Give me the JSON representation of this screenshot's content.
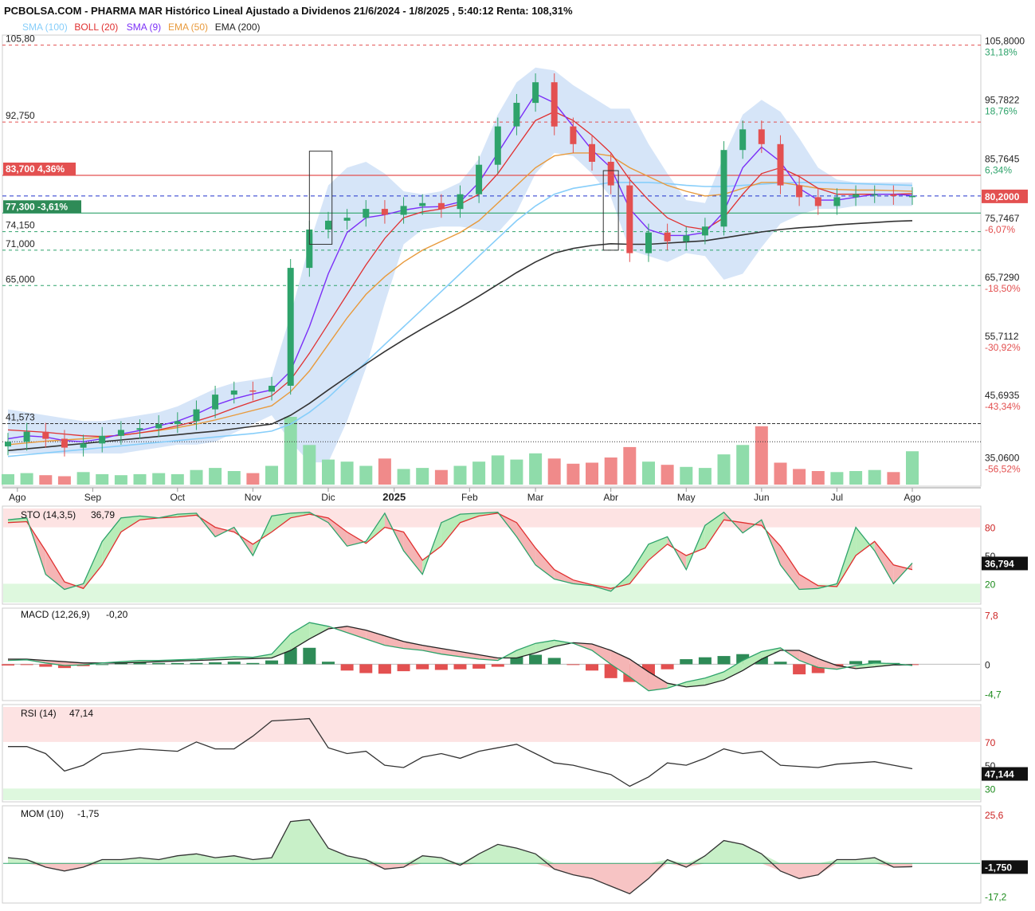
{
  "header": {
    "title": "PCBOLSA.COM - PHARMA MAR Histórico Lineal Ajustado a Dividenos 21/6/2024 - 1/8/2025 , 5:40:12 Renta: 108,31%"
  },
  "legend": [
    {
      "label": "SMA (100)",
      "color": "#87cefa"
    },
    {
      "label": "BOLL (20)",
      "color": "#e03030"
    },
    {
      "label": "SMA (9)",
      "color": "#7b2ff7"
    },
    {
      "label": "EMA (50)",
      "color": "#e89a3c"
    },
    {
      "label": "EMA (200)",
      "color": "#222222"
    }
  ],
  "colors": {
    "up": "#2ea36b",
    "down": "#e35050",
    "boll_fill": "#cfe0f7",
    "vol_up": "#8fdcaa",
    "vol_down": "#f08a8a"
  },
  "chart_data": [
    {
      "type": "line",
      "name": "price",
      "ylim": [
        31.5,
        107.5
      ],
      "y_ticks": [
        {
          "value": 105.8,
          "label": "105,8000",
          "pct": "31,18%"
        },
        {
          "value": 95.7822,
          "label": "95,7822",
          "pct": "18,76%"
        },
        {
          "value": 85.7645,
          "label": "85,7645",
          "pct": "6,34%"
        },
        {
          "value": 75.7467,
          "label": "75,7467",
          "pct": "-6,07%"
        },
        {
          "value": 65.729,
          "label": "65,7290",
          "pct": "-18,50%"
        },
        {
          "value": 55.7112,
          "label": "55,7112",
          "pct": "-30,92%"
        },
        {
          "value": 45.6935,
          "label": "45,6935",
          "pct": "-43,34%"
        },
        {
          "value": 35.06,
          "label": "35,0600",
          "pct": "-56,52%"
        }
      ],
      "levels": [
        {
          "value": 105.8,
          "label": "105,80",
          "style": "red-dash"
        },
        {
          "value": 92.75,
          "label": "92,750",
          "style": "red-dash"
        },
        {
          "value": 83.7,
          "label": "83,700",
          "pct": "4,36%",
          "style": "red-solid"
        },
        {
          "value": 80.2,
          "label": "80,2000",
          "style": "blue-dash"
        },
        {
          "value": 77.3,
          "label": "77,300",
          "pct": "-3,61%",
          "style": "green-solid"
        },
        {
          "value": 74.15,
          "label": "74,150",
          "style": "green-dash"
        },
        {
          "value": 71.0,
          "label": "71,000",
          "style": "green-dash"
        },
        {
          "value": 65.0,
          "label": "65,000",
          "style": "green-dash"
        },
        {
          "value": 41.573,
          "label": "41,573",
          "style": "black-dash"
        },
        {
          "value": 38.5,
          "label": "",
          "style": "black-dot"
        }
      ],
      "last_price": "80,2000",
      "x_labels": [
        "Ago",
        "Sep",
        "Oct",
        "Nov",
        "Dic",
        "2025",
        "Feb",
        "Mar",
        "Abr",
        "May",
        "Jun",
        "Jul",
        "Ago"
      ],
      "x_label_pos": [
        0.5,
        4.5,
        9,
        13,
        17,
        20.5,
        24.5,
        28,
        32,
        36,
        40,
        44,
        48
      ],
      "n_weeks": 49,
      "close": [
        38.5,
        40.2,
        39.0,
        37.5,
        38.2,
        39.5,
        40.5,
        40.8,
        41.5,
        42.0,
        44.0,
        46.5,
        47.2,
        47.0,
        48.0,
        68.0,
        74.5,
        76.0,
        76.5,
        78.0,
        77.0,
        78.5,
        79.0,
        78.0,
        80.5,
        85.5,
        92.0,
        96.0,
        99.5,
        92.0,
        89.0,
        86.0,
        82.0,
        70.5,
        74.0,
        72.5,
        73.5,
        75.0,
        88.0,
        91.5,
        89.0,
        82.0,
        80.0,
        78.5,
        80.0,
        80.5,
        80.5,
        80.2,
        80.2
      ],
      "sma9": [
        39.0,
        39.5,
        39.3,
        38.7,
        38.5,
        39.0,
        39.8,
        40.4,
        41.2,
        42.0,
        43.2,
        44.7,
        45.8,
        46.6,
        47.3,
        50.5,
        58.0,
        67.0,
        74.0,
        76.5,
        77.0,
        77.8,
        78.3,
        78.4,
        79.2,
        82.5,
        87.5,
        92.5,
        97.5,
        96.0,
        92.0,
        88.0,
        85.0,
        78.0,
        74.5,
        73.5,
        73.5,
        74.0,
        77.5,
        85.0,
        88.5,
        86.0,
        81.5,
        79.5,
        79.5,
        80.0,
        80.5,
        80.5,
        80.3
      ],
      "boll_mid": [
        40.5,
        40.3,
        40.1,
        39.8,
        39.5,
        39.4,
        39.6,
        40.0,
        40.5,
        41.2,
        42.0,
        43.0,
        44.2,
        45.3,
        46.3,
        49.0,
        53.5,
        58.5,
        63.5,
        68.5,
        73.0,
        76.5,
        77.5,
        78.0,
        78.8,
        80.5,
        84.0,
        88.5,
        93.0,
        94.5,
        93.0,
        90.5,
        87.5,
        83.0,
        79.5,
        76.5,
        75.0,
        74.5,
        76.5,
        80.5,
        84.0,
        85.0,
        83.5,
        81.5,
        80.5,
        80.5,
        80.5,
        80.5,
        80.6
      ],
      "boll_up": [
        44.0,
        43.5,
        43.0,
        42.5,
        42.0,
        42.0,
        42.5,
        43.0,
        43.5,
        44.5,
        46.0,
        47.5,
        48.5,
        49.0,
        49.5,
        60.0,
        72.0,
        82.0,
        85.0,
        86.0,
        84.0,
        81.0,
        80.5,
        81.0,
        82.5,
        86.5,
        94.0,
        99.5,
        102.0,
        101.5,
        99.0,
        97.0,
        95.0,
        95.0,
        89.0,
        84.0,
        79.5,
        79.0,
        87.0,
        94.0,
        96.5,
        94.5,
        90.0,
        85.0,
        83.0,
        82.5,
        82.5,
        82.5,
        82.5
      ],
      "boll_lo": [
        36.5,
        36.5,
        36.5,
        36.5,
        36.5,
        36.5,
        36.5,
        37.0,
        37.5,
        38.0,
        38.0,
        38.5,
        40.0,
        41.5,
        43.0,
        38.5,
        35.0,
        35.0,
        42.0,
        51.0,
        62.0,
        72.0,
        74.5,
        75.0,
        75.0,
        74.5,
        74.0,
        77.5,
        84.0,
        87.5,
        87.0,
        84.0,
        80.0,
        71.0,
        70.0,
        69.0,
        70.5,
        70.0,
        66.0,
        67.0,
        71.5,
        75.5,
        77.0,
        78.0,
        78.0,
        78.5,
        78.5,
        78.5,
        78.5
      ],
      "ema50": [
        38.0,
        38.3,
        38.6,
        38.8,
        39.0,
        39.3,
        39.6,
        40.0,
        40.4,
        40.9,
        41.5,
        42.2,
        43.0,
        43.8,
        44.6,
        47.0,
        50.5,
        55.0,
        59.5,
        63.5,
        66.5,
        69.0,
        71.0,
        72.5,
        74.0,
        76.0,
        79.0,
        82.0,
        85.0,
        87.0,
        87.5,
        87.5,
        87.0,
        85.0,
        83.5,
        82.0,
        81.0,
        80.2,
        80.5,
        81.5,
        82.5,
        82.5,
        82.0,
        81.5,
        81.3,
        81.2,
        81.2,
        81.1,
        81.0
      ],
      "sma100": [
        36.0,
        36.3,
        36.6,
        36.9,
        37.2,
        37.5,
        37.8,
        38.1,
        38.4,
        38.7,
        39.0,
        39.3,
        39.6,
        39.9,
        40.3,
        41.5,
        43.5,
        46.0,
        49.0,
        52.0,
        55.0,
        58.0,
        61.0,
        64.0,
        67.0,
        70.0,
        73.0,
        76.0,
        78.5,
        80.5,
        81.5,
        82.0,
        82.5,
        82.5,
        82.5,
        82.3,
        82.0,
        81.8,
        81.8,
        82.0,
        82.2,
        82.4,
        82.5,
        82.5,
        82.4,
        82.3,
        82.2,
        82.1,
        82.0
      ],
      "ema200": [
        37.0,
        37.3,
        37.6,
        37.9,
        38.2,
        38.5,
        38.8,
        39.1,
        39.4,
        39.7,
        40.0,
        40.3,
        40.7,
        41.1,
        41.5,
        43.0,
        45.0,
        47.3,
        49.5,
        51.7,
        53.8,
        55.8,
        57.7,
        59.5,
        61.3,
        63.2,
        65.2,
        67.2,
        69.0,
        70.5,
        71.3,
        71.8,
        72.1,
        72.0,
        72.0,
        72.2,
        72.4,
        72.6,
        73.1,
        73.6,
        74.1,
        74.5,
        74.8,
        75.0,
        75.3,
        75.5,
        75.7,
        75.9,
        76.0
      ],
      "volume": [
        1.0,
        1.1,
        0.9,
        0.8,
        1.2,
        1.0,
        0.9,
        1.0,
        1.1,
        1.0,
        1.4,
        1.6,
        1.3,
        1.1,
        1.8,
        6.5,
        3.8,
        2.4,
        2.2,
        1.8,
        2.5,
        1.5,
        1.6,
        1.4,
        1.8,
        2.2,
        2.8,
        2.4,
        3.0,
        2.5,
        2.0,
        2.1,
        2.6,
        3.6,
        2.2,
        1.9,
        1.7,
        1.6,
        2.9,
        3.8,
        5.6,
        2.1,
        1.5,
        1.3,
        1.2,
        1.3,
        1.4,
        1.2,
        3.2
      ],
      "annotation_boxes": [
        [
          16,
          17.2,
          72.0,
          87.8
        ],
        [
          31.6,
          32.4,
          71.0,
          84.5
        ]
      ]
    },
    {
      "type": "line",
      "name": "STO (14,3,5)",
      "title": "STO (14,3,5)",
      "value": "36,79",
      "last_label": "36,794",
      "ylim": [
        0,
        100
      ],
      "bands": [
        20,
        80
      ],
      "y_ticks": [
        80,
        50,
        20
      ],
      "k": [
        88,
        90,
        30,
        14,
        20,
        65,
        90,
        92,
        90,
        94,
        95,
        70,
        80,
        50,
        92,
        95,
        96,
        85,
        60,
        65,
        95,
        55,
        30,
        85,
        94,
        95,
        96,
        70,
        40,
        25,
        20,
        18,
        12,
        30,
        62,
        70,
        35,
        82,
        96,
        74,
        88,
        40,
        14,
        15,
        20,
        80,
        55,
        20,
        42
      ],
      "d": [
        85,
        86,
        55,
        22,
        15,
        40,
        75,
        88,
        90,
        91,
        93,
        80,
        75,
        62,
        75,
        90,
        94,
        90,
        75,
        63,
        80,
        75,
        45,
        60,
        85,
        92,
        95,
        85,
        58,
        35,
        24,
        19,
        15,
        20,
        45,
        62,
        50,
        58,
        88,
        85,
        82,
        60,
        30,
        18,
        17,
        50,
        65,
        40,
        35
      ]
    },
    {
      "type": "line",
      "name": "MACD (12,26,9)",
      "title": "MACD (12,26,9)",
      "value": "-0,20",
      "ylim": [
        -5.5,
        8.5
      ],
      "y_ticks": [
        {
          "value": 7.8,
          "label": "7,8"
        },
        {
          "value": 0,
          "label": "0"
        },
        {
          "value": -4.7,
          "label": "-4,7"
        }
      ],
      "macd": [
        0.6,
        0.7,
        0.2,
        -0.2,
        -0.1,
        0.2,
        0.4,
        0.6,
        0.6,
        0.7,
        0.8,
        1.0,
        1.2,
        1.1,
        1.6,
        4.8,
        6.6,
        6.0,
        5.0,
        4.0,
        3.0,
        2.5,
        2.2,
        1.6,
        1.2,
        0.8,
        0.6,
        2.2,
        3.3,
        3.8,
        3.3,
        2.2,
        0.0,
        -2.0,
        -4.2,
        -3.8,
        -2.8,
        -2.2,
        -1.2,
        0.6,
        2.0,
        2.6,
        0.6,
        -0.5,
        -0.8,
        -0.2,
        0.2,
        0.1,
        -0.2
      ],
      "signal": [
        0.8,
        0.8,
        0.6,
        0.4,
        0.2,
        0.2,
        0.2,
        0.3,
        0.4,
        0.5,
        0.6,
        0.7,
        0.8,
        0.9,
        1.0,
        2.2,
        4.0,
        5.6,
        6.0,
        5.4,
        4.5,
        3.6,
        3.0,
        2.5,
        2.0,
        1.5,
        1.0,
        1.0,
        1.8,
        2.8,
        3.4,
        3.2,
        2.2,
        0.8,
        -1.2,
        -3.0,
        -3.6,
        -3.3,
        -2.5,
        -1.0,
        0.8,
        2.2,
        2.2,
        0.9,
        -0.2,
        -0.7,
        -0.4,
        -0.1,
        -0.1
      ]
    },
    {
      "type": "line",
      "name": "RSI (14)",
      "title": "RSI (14)",
      "value": "47,14",
      "last_label": "47,144",
      "ylim": [
        20,
        100
      ],
      "bands": [
        30,
        70
      ],
      "y_ticks": [
        {
          "value": 70,
          "label": "70"
        },
        {
          "value": 50,
          "label": "50"
        },
        {
          "value": 30,
          "label": "30"
        }
      ],
      "rsi": [
        66,
        66,
        60,
        45,
        50,
        60,
        62,
        64,
        63,
        62,
        70,
        64,
        64,
        75,
        88,
        89,
        90,
        65,
        60,
        62,
        50,
        48,
        57,
        60,
        56,
        62,
        65,
        68,
        60,
        52,
        50,
        46,
        42,
        32,
        40,
        52,
        50,
        56,
        64,
        60,
        62,
        50,
        49,
        48,
        51,
        52,
        53,
        50,
        47
      ]
    },
    {
      "type": "line",
      "name": "MOM (10)",
      "title": "MOM (10)",
      "value": "-1,75",
      "last_label": "-1,750",
      "ylim": [
        -20,
        29
      ],
      "y_ticks": [
        {
          "value": 25.6,
          "label": "25,6"
        },
        {
          "value": 0,
          "label": ""
        },
        {
          "value": -17.2,
          "label": "-17,2"
        }
      ],
      "mom": [
        3,
        2,
        -2,
        -4,
        -2,
        2,
        2,
        3,
        2,
        4,
        5,
        3,
        4,
        2,
        3,
        22,
        23,
        8,
        4,
        2,
        -3,
        -2,
        4,
        3,
        -1,
        5,
        10,
        8,
        5,
        -3,
        -6,
        -8,
        -12,
        -16,
        -8,
        2,
        -2,
        4,
        12,
        10,
        5,
        -4,
        -8,
        -6,
        2,
        2,
        3,
        -2,
        -1.75
      ]
    }
  ]
}
